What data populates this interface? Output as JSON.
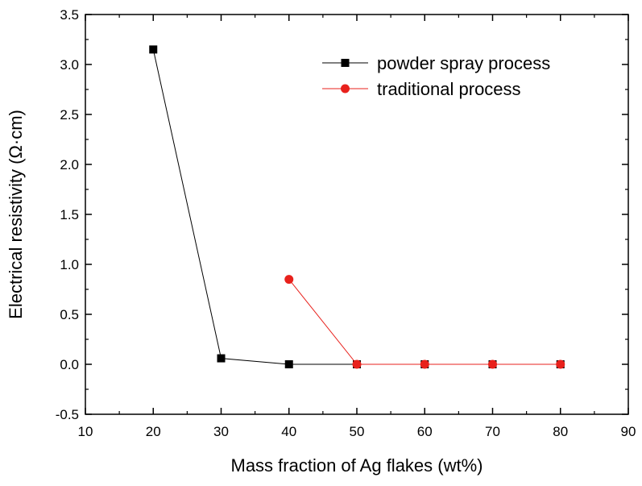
{
  "chart_data": {
    "type": "line",
    "title": "",
    "xlabel": "Mass fraction of Ag flakes (wt%)",
    "ylabel": "Electrical resistivity (Ω·cm)",
    "xlim": [
      10,
      90
    ],
    "ylim": [
      -0.5,
      3.5
    ],
    "xticks": [
      10,
      20,
      30,
      40,
      50,
      60,
      70,
      80,
      90
    ],
    "yticks": [
      -0.5,
      0.0,
      0.5,
      1.0,
      1.5,
      2.0,
      2.5,
      3.0,
      3.5
    ],
    "xtick_labels": [
      "10",
      "20",
      "30",
      "40",
      "50",
      "60",
      "70",
      "80",
      "90"
    ],
    "ytick_labels": [
      "-0.5",
      "0.0",
      "0.5",
      "1.0",
      "1.5",
      "2.0",
      "2.5",
      "3.0",
      "3.5"
    ],
    "grid": false,
    "legend_position": "top-right",
    "series": [
      {
        "name": "powder spray process",
        "color": "#000000",
        "marker": "square",
        "x": [
          20,
          30,
          40,
          50,
          60,
          70,
          80
        ],
        "y": [
          3.15,
          0.06,
          0.0,
          0.0,
          0.0,
          0.0,
          0.0
        ]
      },
      {
        "name": "traditional process",
        "color": "#e8211c",
        "marker": "circle",
        "x": [
          40,
          50,
          60,
          70,
          80
        ],
        "y": [
          0.85,
          0.0,
          0.0,
          0.0,
          0.0
        ]
      }
    ]
  }
}
